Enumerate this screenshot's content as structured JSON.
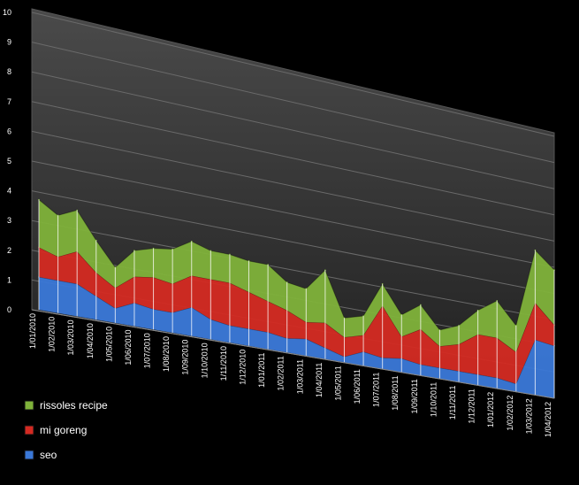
{
  "chart_data": {
    "type": "area",
    "stacked": true,
    "style": "3d-perspective",
    "background": "#000000",
    "wall_color": "#3a3a3a",
    "grid": true,
    "ylim": [
      0,
      10
    ],
    "y_ticks": [
      "0",
      "1",
      "2",
      "3",
      "4",
      "5",
      "6",
      "7",
      "8",
      "9",
      "10"
    ],
    "legend_position": "bottom-left",
    "categories": [
      "1/01/2010",
      "1/02/2010",
      "1/03/2010",
      "1/04/2010",
      "1/05/2010",
      "1/06/2010",
      "1/07/2010",
      "1/08/2010",
      "1/09/2010",
      "1/10/2010",
      "1/11/2010",
      "1/12/2010",
      "1/01/2011",
      "1/02/2011",
      "1/03/2011",
      "1/04/2011",
      "1/05/2011",
      "1/06/2011",
      "1/07/2011",
      "1/08/2011",
      "1/09/2011",
      "1/10/2011",
      "1/11/2011",
      "1/12/2011",
      "1/01/2012",
      "1/02/2012",
      "1/03/2012",
      "1/04/2012"
    ],
    "series": [
      {
        "name": "seo",
        "color": "#3a78d8",
        "values": [
          1.1,
          1.1,
          1.1,
          0.8,
          0.5,
          0.8,
          0.7,
          0.7,
          1.0,
          0.7,
          0.6,
          0.6,
          0.6,
          0.5,
          0.6,
          0.4,
          0.2,
          0.5,
          0.4,
          0.5,
          0.4,
          0.4,
          0.4,
          0.4,
          0.4,
          0.3,
          2.1,
          2.0
        ]
      },
      {
        "name": "mi goreng",
        "color": "#d42a22",
        "values": [
          1.0,
          0.8,
          1.1,
          0.8,
          0.7,
          0.9,
          1.1,
          1.0,
          1.1,
          1.4,
          1.5,
          1.3,
          1.1,
          1.0,
          0.6,
          0.9,
          0.7,
          0.6,
          1.9,
          0.8,
          1.3,
          0.8,
          1.0,
          1.5,
          1.5,
          1.2,
          1.4,
          0.8
        ]
      },
      {
        "name": "rissoles recipe",
        "color": "#7fb23a",
        "values": [
          1.6,
          1.4,
          1.4,
          1.1,
          0.7,
          0.9,
          1.0,
          1.2,
          1.2,
          1.0,
          1.0,
          1.1,
          1.3,
          1.0,
          1.2,
          1.9,
          0.7,
          0.7,
          0.8,
          0.8,
          0.9,
          0.6,
          0.7,
          0.9,
          1.4,
          1.0,
          2.0,
          2.1
        ]
      }
    ]
  }
}
